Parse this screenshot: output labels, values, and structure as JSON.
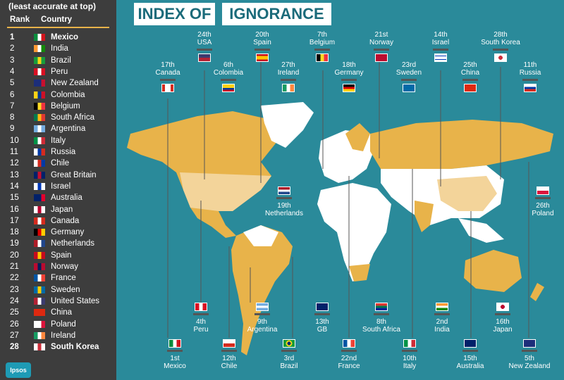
{
  "sidebar": {
    "header": "(least accurate at top)",
    "col_rank": "Rank",
    "col_country": "Country",
    "rows": [
      {
        "rank": "1",
        "country": "Mexico",
        "bold": true,
        "c1": "#0a8c3c",
        "c2": "#fff",
        "c3": "#d1141c"
      },
      {
        "rank": "2",
        "country": "India",
        "c1": "#ff9933",
        "c2": "#fff",
        "c3": "#138808"
      },
      {
        "rank": "3",
        "country": "Brazil",
        "c1": "#169c3c",
        "c2": "#f7d417",
        "c3": "#169c3c"
      },
      {
        "rank": "4",
        "country": "Peru",
        "c1": "#d91023",
        "c2": "#fff",
        "c3": "#d91023"
      },
      {
        "rank": "5",
        "country": "New Zealand",
        "c1": "#1c2e7a",
        "c2": "#1c2e7a",
        "c3": "#c8102e"
      },
      {
        "rank": "6",
        "country": "Colombia",
        "c1": "#fcd116",
        "c2": "#003893",
        "c3": "#ce1126"
      },
      {
        "rank": "7",
        "country": "Belgium",
        "c1": "#000",
        "c2": "#fdda24",
        "c3": "#ef3340"
      },
      {
        "rank": "8",
        "country": "South Africa",
        "c1": "#007a4d",
        "c2": "#ffb612",
        "c3": "#de3831"
      },
      {
        "rank": "9",
        "country": "Argentina",
        "c1": "#74acdf",
        "c2": "#fff",
        "c3": "#74acdf"
      },
      {
        "rank": "10",
        "country": "Italy",
        "c1": "#009246",
        "c2": "#fff",
        "c3": "#ce2b37"
      },
      {
        "rank": "11",
        "country": "Russia",
        "c1": "#fff",
        "c2": "#0039a6",
        "c3": "#d52b1e"
      },
      {
        "rank": "12",
        "country": "Chile",
        "c1": "#fff",
        "c2": "#d52b1e",
        "c3": "#0039a6"
      },
      {
        "rank": "13",
        "country": "Great Britain",
        "c1": "#012169",
        "c2": "#c8102e",
        "c3": "#012169"
      },
      {
        "rank": "14",
        "country": "Israel",
        "c1": "#fff",
        "c2": "#0038b8",
        "c3": "#fff"
      },
      {
        "rank": "15",
        "country": "Australia",
        "c1": "#012169",
        "c2": "#012169",
        "c3": "#e4002b"
      },
      {
        "rank": "16",
        "country": "Japan",
        "c1": "#fff",
        "c2": "#bc002d",
        "c3": "#fff"
      },
      {
        "rank": "17",
        "country": "Canada",
        "c1": "#d52b1e",
        "c2": "#fff",
        "c3": "#d52b1e"
      },
      {
        "rank": "18",
        "country": "Germany",
        "c1": "#000",
        "c2": "#dd0000",
        "c3": "#ffce00"
      },
      {
        "rank": "19",
        "country": "Netherlands",
        "c1": "#ae1c28",
        "c2": "#fff",
        "c3": "#21468b"
      },
      {
        "rank": "20",
        "country": "Spain",
        "c1": "#c60b1e",
        "c2": "#ffc400",
        "c3": "#c60b1e"
      },
      {
        "rank": "21",
        "country": "Norway",
        "c1": "#ba0c2f",
        "c2": "#00205b",
        "c3": "#ba0c2f"
      },
      {
        "rank": "22",
        "country": "France",
        "c1": "#0055a4",
        "c2": "#fff",
        "c3": "#ef4135"
      },
      {
        "rank": "23",
        "country": "Sweden",
        "c1": "#006aa7",
        "c2": "#fecc00",
        "c3": "#006aa7"
      },
      {
        "rank": "24",
        "country": "United States",
        "c1": "#b22234",
        "c2": "#fff",
        "c3": "#3c3b6e"
      },
      {
        "rank": "25",
        "country": "China",
        "c1": "#de2910",
        "c2": "#de2910",
        "c3": "#de2910"
      },
      {
        "rank": "26",
        "country": "Poland",
        "c1": "#fff",
        "c2": "#fff",
        "c3": "#dc143c"
      },
      {
        "rank": "27",
        "country": "Ireland",
        "c1": "#169b62",
        "c2": "#fff",
        "c3": "#ff883e"
      },
      {
        "rank": "28",
        "country": "South Korea",
        "bold": true,
        "c1": "#fff",
        "c2": "#cd2e3a",
        "c3": "#fff"
      }
    ],
    "logo": "Ipsos"
  },
  "title": {
    "part1": "INDEX OF",
    "part2": "IGNORANCE"
  },
  "colors": {
    "ocean": "#2a8a9a",
    "land": "#ffffff",
    "highlight": "#e8b34a",
    "light": "#f3d49a"
  },
  "labels": {
    "usa": {
      "rank": "24th",
      "name": "USA"
    },
    "spain": {
      "rank": "20th",
      "name": "Spain"
    },
    "belgium": {
      "rank": "7th",
      "name": "Belgium"
    },
    "norway": {
      "rank": "21st",
      "name": "Norway"
    },
    "israel": {
      "rank": "14th",
      "name": "Israel"
    },
    "south_korea": {
      "rank": "28th",
      "name": "South Korea"
    },
    "canada": {
      "rank": "17th",
      "name": "Canada"
    },
    "colombia": {
      "rank": "6th",
      "name": "Colombia"
    },
    "ireland": {
      "rank": "27th",
      "name": "Ireland"
    },
    "germany": {
      "rank": "18th",
      "name": "Germany"
    },
    "sweden": {
      "rank": "23rd",
      "name": "Sweden"
    },
    "china": {
      "rank": "25th",
      "name": "China"
    },
    "russia": {
      "rank": "11th",
      "name": "Russia"
    },
    "netherlands": {
      "rank": "19th",
      "name": "Netherlands"
    },
    "poland": {
      "rank": "26th",
      "name": "Poland"
    },
    "peru": {
      "rank": "4th",
      "name": "Peru"
    },
    "argentina": {
      "rank": "9th",
      "name": "Argentina"
    },
    "gb": {
      "rank": "13th",
      "name": "GB"
    },
    "south_africa": {
      "rank": "8th",
      "name": "South Africa"
    },
    "india": {
      "rank": "2nd",
      "name": "India"
    },
    "japan": {
      "rank": "16th",
      "name": "Japan"
    },
    "mexico": {
      "rank": "1st",
      "name": "Mexico"
    },
    "chile": {
      "rank": "12th",
      "name": "Chile"
    },
    "brazil": {
      "rank": "3rd",
      "name": "Brazil"
    },
    "france": {
      "rank": "22nd",
      "name": "France"
    },
    "italy": {
      "rank": "10th",
      "name": "Italy"
    },
    "australia": {
      "rank": "15th",
      "name": "Australia"
    },
    "new_zealand": {
      "rank": "5th",
      "name": "New Zealand"
    }
  }
}
